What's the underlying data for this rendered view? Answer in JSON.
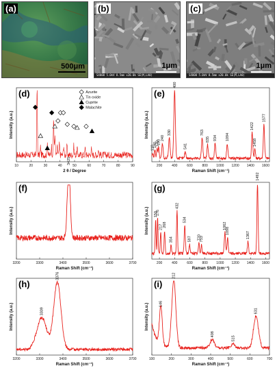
{
  "top_row": [
    {
      "letter": "(a)",
      "scale": "500μm",
      "info": ""
    },
    {
      "letter": "(b)",
      "scale": "1μm",
      "info": "S4800 5.0kV 8.5mm x20.0k SE(M,LA0)"
    },
    {
      "letter": "(c)",
      "scale": "1μm",
      "info": "S4800 5.0kV 8.5mm x20.0k SE(M,LA0)"
    }
  ],
  "colors": {
    "trace": "#e8211c",
    "frame": "#555555"
  },
  "chart_data": [
    {
      "id": "d",
      "letter": "(d)",
      "type": "line",
      "xlabel": "2 θ / Degree",
      "ylabel": "Intensity (a.u.)",
      "xlim": [
        10,
        90
      ],
      "xticks": [
        "10",
        "20",
        "30",
        "40",
        "50",
        "60",
        "70",
        "80",
        "90"
      ],
      "legend": [
        {
          "label": "Azurite",
          "marker": "diamond-open"
        },
        {
          "label": "Tin oxide",
          "marker": "triangle-open"
        },
        {
          "label": "Cuprite",
          "marker": "triangle-filled"
        },
        {
          "label": "Malachite",
          "marker": "diamond-filled"
        }
      ],
      "peaks": [
        {
          "x": 24.2,
          "h": 1.0
        },
        {
          "x": 26.6,
          "h": 0.12
        },
        {
          "x": 31.3,
          "h": 0.2
        },
        {
          "x": 34.1,
          "h": 0.14
        },
        {
          "x": 35.6,
          "h": 0.55
        },
        {
          "x": 36.5,
          "h": 0.3
        },
        {
          "x": 38.2,
          "h": 0.12
        },
        {
          "x": 39.6,
          "h": 0.16
        },
        {
          "x": 42.5,
          "h": 0.14
        },
        {
          "x": 44.8,
          "h": 0.15
        },
        {
          "x": 49.5,
          "h": 0.14
        },
        {
          "x": 51.8,
          "h": 0.1
        },
        {
          "x": 57.3,
          "h": 0.1
        },
        {
          "x": 61.5,
          "h": 0.1
        },
        {
          "x": 66.5,
          "h": 0.08
        }
      ],
      "markers": [
        {
          "x": 26.6,
          "y": 0.38,
          "m": "triangle-open"
        },
        {
          "x": 31.3,
          "y": 0.2,
          "m": "triangle-filled"
        },
        {
          "x": 34.3,
          "y": 0.72,
          "m": "diamond-filled"
        },
        {
          "x": 36.5,
          "y": 0.52,
          "m": "triangle-open"
        },
        {
          "x": 38.6,
          "y": 0.6,
          "m": "diamond-open"
        },
        {
          "x": 40.3,
          "y": 0.72,
          "m": "diamond-open"
        },
        {
          "x": 42.3,
          "y": 0.72,
          "m": "diamond-open"
        },
        {
          "x": 45.0,
          "y": 0.55,
          "m": "diamond-open"
        },
        {
          "x": 49.5,
          "y": 0.52,
          "m": "diamond-open"
        },
        {
          "x": 51.8,
          "y": 0.5,
          "m": "triangle-open"
        },
        {
          "x": 58.0,
          "y": 0.52,
          "m": "diamond-open"
        },
        {
          "x": 62.0,
          "y": 0.45,
          "m": "triangle-filled"
        },
        {
          "x": 23.0,
          "y": 0.8,
          "m": "diamond-filled"
        }
      ],
      "baseline": 0.1,
      "noise": 0.05
    },
    {
      "id": "e",
      "letter": "(e)",
      "type": "line",
      "xlabel": "Raman Shift (cm⁻¹)",
      "ylabel": "Intensity (a.u.)",
      "xlim": [
        100,
        1650
      ],
      "xticks": [
        "200",
        "400",
        "600",
        "800",
        "1000",
        "1200",
        "1400",
        "1600"
      ],
      "xtick_values": [
        200,
        400,
        600,
        800,
        1000,
        1200,
        1400,
        1600
      ],
      "peaks": [
        {
          "x": 110,
          "h": 0.08,
          "w": 10
        },
        {
          "x": 140,
          "h": 0.12,
          "w": 10
        },
        {
          "x": 170,
          "h": 0.14,
          "w": 10
        },
        {
          "x": 190,
          "h": 0.16,
          "w": 10
        },
        {
          "x": 240,
          "h": 0.22,
          "w": 12
        },
        {
          "x": 330,
          "h": 0.3,
          "w": 14
        },
        {
          "x": 400,
          "h": 1.0,
          "w": 14
        },
        {
          "x": 541,
          "h": 0.1,
          "w": 12
        },
        {
          "x": 763,
          "h": 0.3,
          "w": 13
        },
        {
          "x": 835,
          "h": 0.2,
          "w": 12
        },
        {
          "x": 934,
          "h": 0.22,
          "w": 12
        },
        {
          "x": 1094,
          "h": 0.22,
          "w": 12
        },
        {
          "x": 1422,
          "h": 0.38,
          "w": 12
        },
        {
          "x": 1458,
          "h": 0.14,
          "w": 10
        },
        {
          "x": 1577,
          "h": 0.5,
          "w": 12
        }
      ],
      "labels": [
        "110",
        "140",
        "170",
        "190",
        "240",
        "330",
        "400",
        "541",
        "763",
        "835",
        "934",
        "1094",
        "1422",
        "1458",
        "1577"
      ],
      "baseline": 0.05,
      "noise": 0.02
    },
    {
      "id": "f",
      "letter": "(f)",
      "type": "line",
      "xlabel": "Raman Shift (cm⁻¹)",
      "ylabel": "Intensity (a.u.)",
      "xlim": [
        3200,
        3700
      ],
      "xticks": [
        "3200",
        "3300",
        "3400",
        "3500",
        "3600",
        "3700"
      ],
      "xtick_values": [
        3200,
        3300,
        3400,
        3500,
        3600,
        3700
      ],
      "peaks": [
        {
          "x": 3425,
          "h": 1.0,
          "w": 9
        }
      ],
      "labels": [
        "3425"
      ],
      "baseline": 0.3,
      "noise": 0.04
    },
    {
      "id": "g",
      "letter": "(g)",
      "type": "line",
      "xlabel": "Raman Shift (cm⁻¹)",
      "ylabel": "Intensity (a.u.)",
      "xlim": [
        100,
        1650
      ],
      "xticks": [
        "200",
        "400",
        "600",
        "800",
        "1000",
        "1200",
        "1400",
        "1600"
      ],
      "xtick_values": [
        200,
        400,
        600,
        800,
        1000,
        1200,
        1400,
        1600
      ],
      "peaks": [
        {
          "x": 150,
          "h": 0.48,
          "w": 8
        },
        {
          "x": 176,
          "h": 0.5,
          "w": 8
        },
        {
          "x": 217,
          "h": 0.3,
          "w": 9
        },
        {
          "x": 268,
          "h": 0.33,
          "w": 9
        },
        {
          "x": 354,
          "h": 0.12,
          "w": 9
        },
        {
          "x": 432,
          "h": 0.6,
          "w": 9
        },
        {
          "x": 534,
          "h": 0.4,
          "w": 11
        },
        {
          "x": 597,
          "h": 0.13,
          "w": 11
        },
        {
          "x": 720,
          "h": 0.15,
          "w": 10
        },
        {
          "x": 753,
          "h": 0.13,
          "w": 10
        },
        {
          "x": 1062,
          "h": 0.3,
          "w": 12
        },
        {
          "x": 1098,
          "h": 0.23,
          "w": 11
        },
        {
          "x": 1367,
          "h": 0.17,
          "w": 11
        },
        {
          "x": 1492,
          "h": 1.0,
          "w": 11
        }
      ],
      "labels": [
        "150",
        "176",
        "217",
        "268",
        "354",
        "432",
        "534",
        "597",
        "720",
        "753",
        "1062",
        "1098",
        "1367",
        "1492"
      ],
      "baseline": 0.08,
      "noise": 0.02
    },
    {
      "id": "h",
      "letter": "(h)",
      "type": "line",
      "xlabel": "Raman Shift (cm⁻¹)",
      "ylabel": "Intensity (a.u.)",
      "xlim": [
        3200,
        3700
      ],
      "xticks": [
        "3200",
        "3300",
        "3400",
        "3500",
        "3600",
        "3700"
      ],
      "xtick_values": [
        3200,
        3300,
        3400,
        3500,
        3600,
        3700
      ],
      "peaks": [
        {
          "x": 3309,
          "h": 0.45,
          "w": 30
        },
        {
          "x": 3376,
          "h": 0.95,
          "w": 22
        }
      ],
      "labels": [
        "3309",
        "3376"
      ],
      "baseline": 0.08,
      "noise": 0.02
    },
    {
      "id": "i",
      "letter": "(i)",
      "type": "line",
      "xlabel": "Raman Shift (cm⁻¹)",
      "ylabel": "Intensity (a.u.)",
      "xlim": [
        100,
        700
      ],
      "xticks": [
        "100",
        "200",
        "300",
        "400",
        "500",
        "600",
        "700"
      ],
      "xtick_values": [
        100,
        200,
        300,
        400,
        500,
        600,
        700
      ],
      "peaks": [
        {
          "x": 146,
          "h": 0.55,
          "w": 10
        },
        {
          "x": 212,
          "h": 0.95,
          "w": 15
        },
        {
          "x": 408,
          "h": 0.12,
          "w": 16
        },
        {
          "x": 515,
          "h": 0.06,
          "w": 14
        },
        {
          "x": 631,
          "h": 0.45,
          "w": 18
        }
      ],
      "labels": [
        "146",
        "212",
        "408",
        "515",
        "631"
      ],
      "baseline": 0.1,
      "noise": 0.02
    }
  ]
}
